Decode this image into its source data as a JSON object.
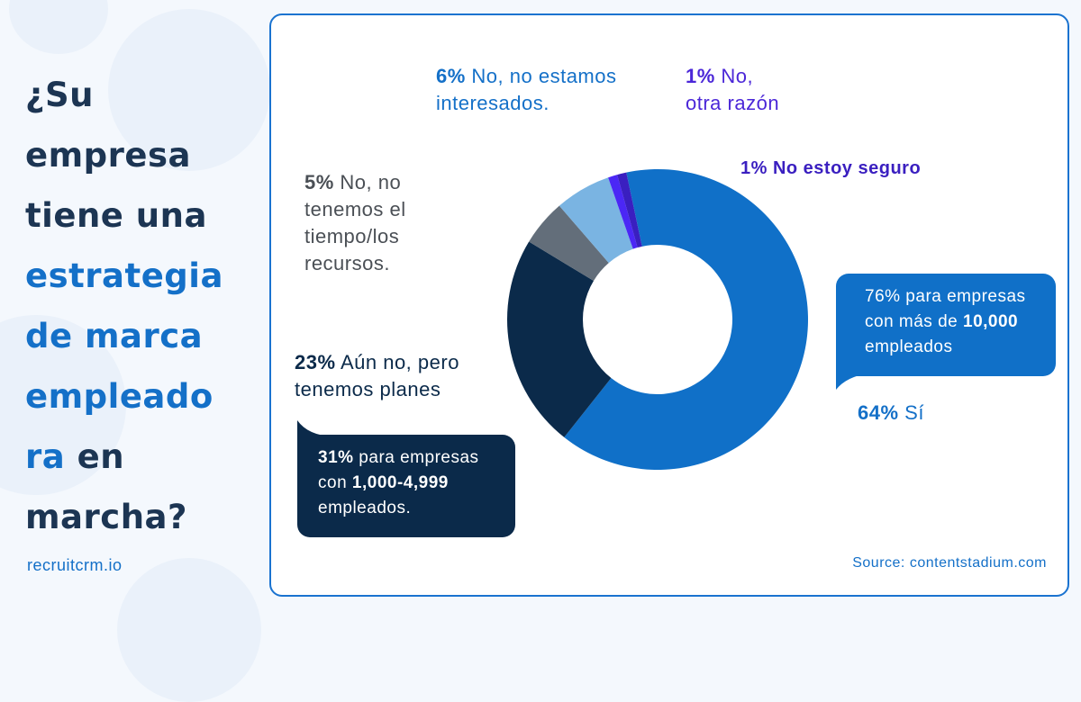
{
  "title": {
    "line1": "¿Su",
    "line2": "empresa",
    "line3": "tiene una",
    "line4": "estrategia",
    "line5": "de marca",
    "line6": "empleado",
    "line7a": "ra",
    "line7b": " en",
    "line8": "marcha?"
  },
  "brand": "recruitcrm.io",
  "source": "Source: contentstadium.com",
  "colors": {
    "dark": "#1c3553",
    "accent": "#1470c8"
  },
  "chart_data": {
    "type": "donut",
    "series": [
      {
        "label_pct": "64%",
        "label_text": " Sí",
        "value": 64,
        "color": "#1070c8"
      },
      {
        "label_pct": "23%",
        "label_text": " Aún no, pero tenemos planes",
        "value": 23,
        "color": "#0b2a4a"
      },
      {
        "label_pct": "5%",
        "label_text": " No, no tenemos el tiempo/los recursos.",
        "value": 5,
        "color": "#636e7a"
      },
      {
        "label_pct": "6%",
        "label_text": " No, no estamos interesados.",
        "value": 6,
        "color": "#7ab4e2"
      },
      {
        "label_pct": "1%",
        "label_text": " No, otra razón",
        "value": 1,
        "color": "#4b27f5"
      },
      {
        "label_pct": "1%",
        "label_text": " No estoy seguro",
        "value": 1,
        "color": "#3a1fc0"
      }
    ],
    "annotations": [
      {
        "pre": "76% para empresas con más de ",
        "bold": "10,000",
        "post": " empleados",
        "color": "#1070c8"
      },
      {
        "bold_pre": "31%",
        "pre": " para empresas con ",
        "bold": "1,000-4,999",
        "post": " empleados.",
        "color": "#0b2a4a"
      }
    ]
  }
}
